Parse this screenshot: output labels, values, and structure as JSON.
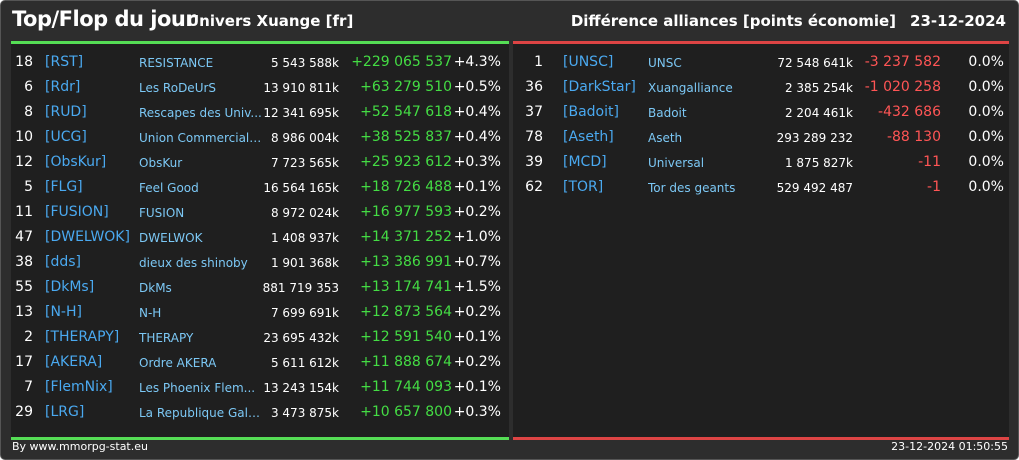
{
  "header": {
    "title": "Top/Flop du jour",
    "universe": "Univers Xuange [fr]",
    "subtitle": "Différence alliances [points économie]",
    "date": "23-12-2024"
  },
  "colors": {
    "top_accent": "#55dd55",
    "flop_accent": "#dd4444",
    "tag": "#4aa9f0",
    "name": "#7cc8f5"
  },
  "top": [
    {
      "rank": "18",
      "tag": "[RST]",
      "name": "RESISTANCE",
      "points": "5 543 588k",
      "diff": "+229 065 537",
      "pct": "+4.3%"
    },
    {
      "rank": "6",
      "tag": "[Rdr]",
      "name": "Les RoDeUrS",
      "points": "13 910 811k",
      "diff": "+63 279 510",
      "pct": "+0.5%"
    },
    {
      "rank": "8",
      "tag": "[RUD]",
      "name": "Rescapes des Univ...",
      "points": "12 341 695k",
      "diff": "+52 547 618",
      "pct": "+0.4%"
    },
    {
      "rank": "10",
      "tag": "[UCG]",
      "name": "Union Commerciale...",
      "points": "8 986 004k",
      "diff": "+38 525 837",
      "pct": "+0.4%"
    },
    {
      "rank": "12",
      "tag": "[ObsKur]",
      "name": "ObsKur",
      "points": "7 723 565k",
      "diff": "+25 923 612",
      "pct": "+0.3%"
    },
    {
      "rank": "5",
      "tag": "[FLG]",
      "name": "Feel Good",
      "points": "16 564 165k",
      "diff": "+18 726 488",
      "pct": "+0.1%"
    },
    {
      "rank": "11",
      "tag": "[FUSION]",
      "name": "FUSION",
      "points": "8 972 024k",
      "diff": "+16 977 593",
      "pct": "+0.2%"
    },
    {
      "rank": "47",
      "tag": "[DWELWOK]",
      "name": "DWELWOK",
      "points": "1 408 937k",
      "diff": "+14 371 252",
      "pct": "+1.0%"
    },
    {
      "rank": "38",
      "tag": "[dds]",
      "name": "dieux des shinoby",
      "points": "1 901 368k",
      "diff": "+13 386 991",
      "pct": "+0.7%"
    },
    {
      "rank": "55",
      "tag": "[DkMs]",
      "name": "DkMs",
      "points": "881 719 353",
      "diff": "+13 174 741",
      "pct": "+1.5%"
    },
    {
      "rank": "13",
      "tag": "[N-H]",
      "name": "N-H",
      "points": "7 699 691k",
      "diff": "+12 873 564",
      "pct": "+0.2%"
    },
    {
      "rank": "2",
      "tag": "[THERAPY]",
      "name": "THERAPY",
      "points": "23 695 432k",
      "diff": "+12 591 540",
      "pct": "+0.1%"
    },
    {
      "rank": "17",
      "tag": "[AKERA]",
      "name": "Ordre AKERA",
      "points": "5 611 612k",
      "diff": "+11 888 674",
      "pct": "+0.2%"
    },
    {
      "rank": "7",
      "tag": "[FlemNix]",
      "name": "Les Phoenix Flem...",
      "points": "13 243 154k",
      "diff": "+11 744 093",
      "pct": "+0.1%"
    },
    {
      "rank": "29",
      "tag": "[LRG]",
      "name": "La Republique Gala...",
      "points": "3 473 875k",
      "diff": "+10 657 800",
      "pct": "+0.3%"
    }
  ],
  "flop": [
    {
      "rank": "1",
      "tag": "[UNSC]",
      "name": "UNSC",
      "points": "72 548 641k",
      "diff": "-3 237 582",
      "pct": "0.0%"
    },
    {
      "rank": "36",
      "tag": "[DarkStar]",
      "name": "Xuangalliance",
      "points": "2 385 254k",
      "diff": "-1 020 258",
      "pct": "0.0%"
    },
    {
      "rank": "37",
      "tag": "[Badoit]",
      "name": "Badoit",
      "points": "2 204 461k",
      "diff": "-432 686",
      "pct": "0.0%"
    },
    {
      "rank": "78",
      "tag": "[Aseth]",
      "name": "Aseth",
      "points": "293 289 232",
      "diff": "-88 130",
      "pct": "0.0%"
    },
    {
      "rank": "39",
      "tag": "[MCD]",
      "name": "Universal",
      "points": "1 875 827k",
      "diff": "-11",
      "pct": "0.0%"
    },
    {
      "rank": "62",
      "tag": "[TOR]",
      "name": "Tor des geants",
      "points": "529 492 487",
      "diff": "-1",
      "pct": "0.0%"
    }
  ],
  "footer": {
    "credit": "By www.mmorpg-stat.eu",
    "timestamp": "23-12-2024 01:50:55"
  }
}
